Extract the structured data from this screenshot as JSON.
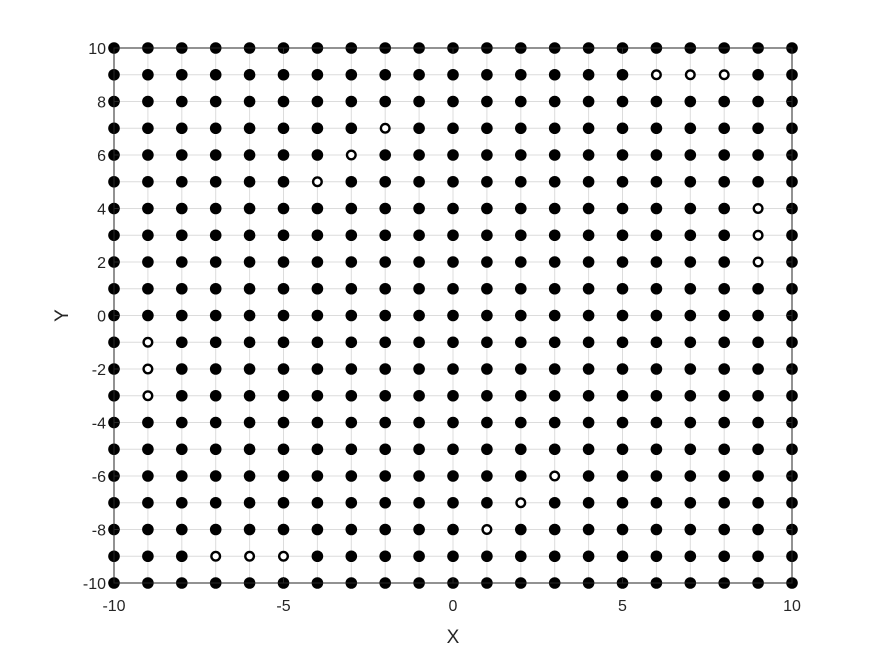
{
  "chart_data": {
    "type": "scatter",
    "xlabel": "X",
    "ylabel": "Y",
    "xlim": [
      -10,
      10
    ],
    "ylim": [
      -10,
      10
    ],
    "xticks": [
      -10,
      -5,
      0,
      5,
      10
    ],
    "yticks": [
      -10,
      -8,
      -6,
      -4,
      -2,
      0,
      2,
      4,
      6,
      8,
      10
    ],
    "grid": true,
    "grid_step": 1,
    "point_color": "#000000",
    "series": [
      {
        "marker": "filled-circle",
        "points": "all integer lattice points (x, y) with x in [-10, 10] and y in [-10, 10], except the points listed in the hollow-circle series"
      },
      {
        "marker": "hollow-circle",
        "points": [
          [
            6,
            9
          ],
          [
            7,
            9
          ],
          [
            8,
            9
          ],
          [
            -2,
            7
          ],
          [
            -3,
            6
          ],
          [
            -4,
            5
          ],
          [
            9,
            4
          ],
          [
            9,
            3
          ],
          [
            9,
            2
          ],
          [
            -9,
            -1
          ],
          [
            -9,
            -2
          ],
          [
            -9,
            -3
          ],
          [
            3,
            -6
          ],
          [
            2,
            -7
          ],
          [
            1,
            -8
          ],
          [
            -7,
            -9
          ],
          [
            -6,
            -9
          ],
          [
            -5,
            -9
          ]
        ]
      }
    ]
  }
}
